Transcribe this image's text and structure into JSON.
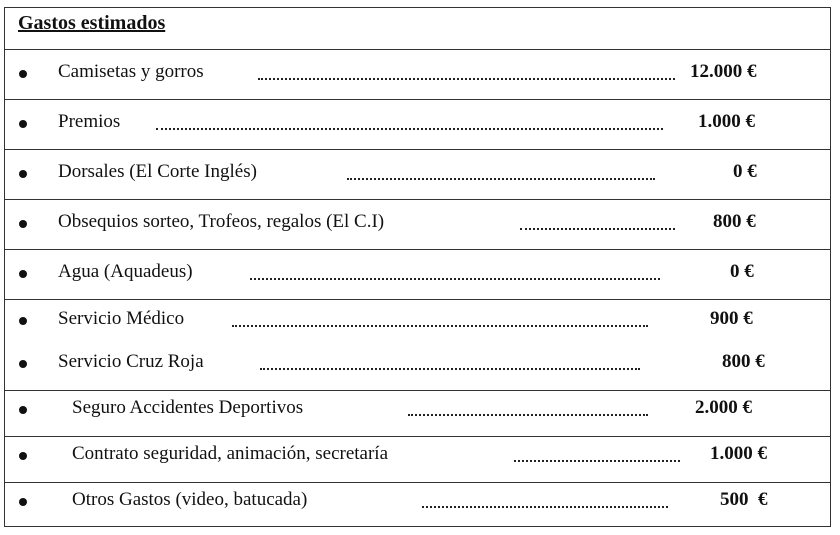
{
  "title": "Gastos estimados",
  "items": [
    {
      "label": "Camisetas y gorros",
      "amount": "12.000 €"
    },
    {
      "label": "Premios",
      "amount": "1.000 €"
    },
    {
      "label": "Dorsales (El Corte Inglés)",
      "amount": "0 €"
    },
    {
      "label": "Obsequios sorteo, Trofeos, regalos (El C.I)",
      "amount": "800 €"
    },
    {
      "label": "Agua (Aquadeus)",
      "amount": "0 €"
    },
    {
      "label": "Servicio Médico",
      "amount": "900 €"
    },
    {
      "label": "Servicio Cruz Roja",
      "amount": "800 €"
    },
    {
      "label": "Seguro  Accidentes Deportivos",
      "amount": "2.000 €"
    },
    {
      "label": "Contrato seguridad, animación, secretaría",
      "amount": "1.000 €"
    },
    {
      "label": "Otros Gastos (video, batucada)",
      "amount": "500  €"
    }
  ]
}
